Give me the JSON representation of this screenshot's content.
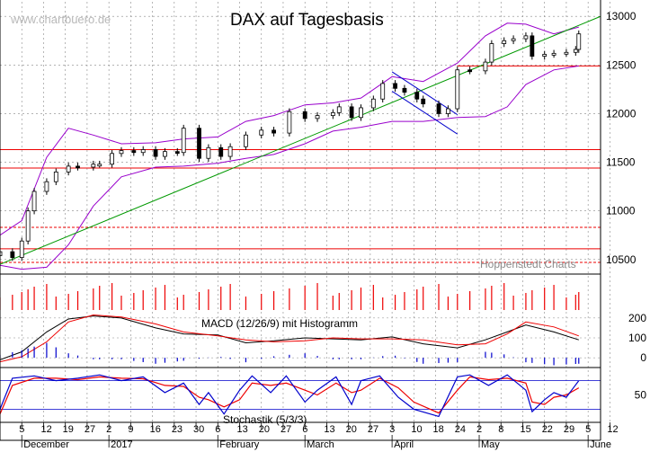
{
  "watermark": "www.chartbuero.de",
  "title": "DAX auf Tagesbasis",
  "source_label": "Hoppenstedt Charts",
  "macd_label": "MACD (12/26/9) mit Histogramm",
  "stoch_label": "Stochastik (5/3/3)",
  "colors": {
    "price": "#000000",
    "bollinger": "#9900cc",
    "trend": "#009900",
    "level": "#ee0000",
    "channel": "#0000cc",
    "macd": "#000000",
    "signal": "#ee0000",
    "histogram": "#0000cc",
    "stoch_k": "#0000cc",
    "stoch_d": "#ee0000"
  },
  "chart_data": {
    "type": "candlestick",
    "title": "DAX auf Tagesbasis",
    "y_ticks": [
      10500,
      11000,
      11500,
      12000,
      12500,
      13000
    ],
    "ylim": [
      10350,
      13150
    ],
    "x_day_ticks": [
      "5",
      "12",
      "19",
      "27",
      "2",
      "9",
      "16",
      "23",
      "30",
      "6",
      "13",
      "20",
      "27",
      "6",
      "13",
      "20",
      "27",
      "3",
      "10",
      "18",
      "24",
      "2",
      "8",
      "15",
      "22",
      "29",
      "5",
      "12"
    ],
    "months": [
      {
        "label": "December",
        "tick": 0
      },
      {
        "label": "2017",
        "tick": 4
      },
      {
        "label": "February",
        "tick": 9
      },
      {
        "label": "March",
        "tick": 13
      },
      {
        "label": "April",
        "tick": 17
      },
      {
        "label": "May",
        "tick": 21
      },
      {
        "label": "June",
        "tick": 26
      }
    ],
    "horizontal_levels": [
      {
        "value": 11630,
        "style": "solid"
      },
      {
        "value": 11440,
        "style": "solid"
      },
      {
        "value": 10830,
        "style": "dashed"
      },
      {
        "value": 10610,
        "style": "solid"
      },
      {
        "value": 10470,
        "style": "dashed"
      },
      {
        "value": 12490,
        "style": "solid"
      }
    ],
    "trend_line": {
      "from": {
        "date": "2016-11-28",
        "value": 10450
      },
      "to": {
        "date": "2017-06-09",
        "value": 13000
      }
    },
    "channel_lines": [
      {
        "from": {
          "date": "2017-04-03",
          "value": 12430
        },
        "to": {
          "date": "2017-04-24",
          "value": 11990
        }
      },
      {
        "from": {
          "date": "2017-04-03",
          "value": 12230
        },
        "to": {
          "date": "2017-04-24",
          "value": 11790
        }
      }
    ],
    "price_close": [
      [
        "2016-11-28",
        10580
      ],
      [
        "2016-12-02",
        10520
      ],
      [
        "2016-12-05",
        10690
      ],
      [
        "2016-12-07",
        11000
      ],
      [
        "2016-12-09",
        11200
      ],
      [
        "2016-12-13",
        11300
      ],
      [
        "2016-12-16",
        11400
      ],
      [
        "2016-12-20",
        11460
      ],
      [
        "2016-12-23",
        11450
      ],
      [
        "2016-12-28",
        11480
      ],
      [
        "2016-12-30",
        11480
      ],
      [
        "2017-01-03",
        11590
      ],
      [
        "2017-01-06",
        11620
      ],
      [
        "2017-01-10",
        11600
      ],
      [
        "2017-01-13",
        11630
      ],
      [
        "2017-01-17",
        11560
      ],
      [
        "2017-01-20",
        11610
      ],
      [
        "2017-01-24",
        11600
      ],
      [
        "2017-01-26",
        11850
      ],
      [
        "2017-01-31",
        11540
      ],
      [
        "2017-02-03",
        11650
      ],
      [
        "2017-02-07",
        11560
      ],
      [
        "2017-02-10",
        11660
      ],
      [
        "2017-02-15",
        11780
      ],
      [
        "2017-02-20",
        11830
      ],
      [
        "2017-02-24",
        11800
      ],
      [
        "2017-03-01",
        12020
      ],
      [
        "2017-03-06",
        11950
      ],
      [
        "2017-03-10",
        11980
      ],
      [
        "2017-03-15",
        12010
      ],
      [
        "2017-03-17",
        12070
      ],
      [
        "2017-03-21",
        11960
      ],
      [
        "2017-03-24",
        12060
      ],
      [
        "2017-03-28",
        12150
      ],
      [
        "2017-03-31",
        12310
      ],
      [
        "2017-04-04",
        12260
      ],
      [
        "2017-04-07",
        12220
      ],
      [
        "2017-04-11",
        12150
      ],
      [
        "2017-04-13",
        12100
      ],
      [
        "2017-04-18",
        12000
      ],
      [
        "2017-04-21",
        12050
      ],
      [
        "2017-04-24",
        12450
      ],
      [
        "2017-04-28",
        12440
      ],
      [
        "2017-05-03",
        12530
      ],
      [
        "2017-05-05",
        12720
      ],
      [
        "2017-05-09",
        12750
      ],
      [
        "2017-05-12",
        12770
      ],
      [
        "2017-05-16",
        12800
      ],
      [
        "2017-05-18",
        12590
      ],
      [
        "2017-05-22",
        12610
      ],
      [
        "2017-05-25",
        12620
      ],
      [
        "2017-05-29",
        12630
      ],
      [
        "2017-06-01",
        12660
      ],
      [
        "2017-06-02",
        12820
      ]
    ],
    "bollinger_upper": [
      [
        "2016-11-28",
        10750
      ],
      [
        "2016-12-05",
        10900
      ],
      [
        "2016-12-13",
        11550
      ],
      [
        "2016-12-20",
        11850
      ],
      [
        "2016-12-28",
        11780
      ],
      [
        "2017-01-06",
        11690
      ],
      [
        "2017-01-17",
        11700
      ],
      [
        "2017-01-26",
        11740
      ],
      [
        "2017-02-06",
        11760
      ],
      [
        "2017-02-15",
        11920
      ],
      [
        "2017-02-24",
        11980
      ],
      [
        "2017-03-06",
        12090
      ],
      [
        "2017-03-15",
        12110
      ],
      [
        "2017-03-24",
        12160
      ],
      [
        "2017-04-03",
        12380
      ],
      [
        "2017-04-13",
        12330
      ],
      [
        "2017-04-24",
        12520
      ],
      [
        "2017-05-03",
        12800
      ],
      [
        "2017-05-10",
        12930
      ],
      [
        "2017-05-16",
        12920
      ],
      [
        "2017-05-25",
        12820
      ],
      [
        "2017-06-02",
        12890
      ]
    ],
    "bollinger_lower": [
      [
        "2016-11-28",
        10440
      ],
      [
        "2016-12-05",
        10400
      ],
      [
        "2016-12-13",
        10420
      ],
      [
        "2016-12-20",
        10650
      ],
      [
        "2016-12-28",
        11050
      ],
      [
        "2017-01-06",
        11350
      ],
      [
        "2017-01-17",
        11450
      ],
      [
        "2017-01-26",
        11460
      ],
      [
        "2017-02-06",
        11490
      ],
      [
        "2017-02-15",
        11540
      ],
      [
        "2017-02-24",
        11580
      ],
      [
        "2017-03-06",
        11690
      ],
      [
        "2017-03-15",
        11820
      ],
      [
        "2017-03-24",
        11860
      ],
      [
        "2017-04-03",
        11920
      ],
      [
        "2017-04-13",
        11920
      ],
      [
        "2017-04-24",
        11960
      ],
      [
        "2017-05-03",
        11970
      ],
      [
        "2017-05-10",
        12070
      ],
      [
        "2017-05-16",
        12300
      ],
      [
        "2017-05-25",
        12450
      ],
      [
        "2017-06-02",
        12490
      ]
    ],
    "macd_ticks": [
      0,
      100,
      200
    ],
    "macd_ylim": [
      -40,
      240
    ],
    "macd_line": [
      [
        "2016-11-28",
        -10
      ],
      [
        "2016-12-05",
        30
      ],
      [
        "2016-12-13",
        130
      ],
      [
        "2016-12-20",
        195
      ],
      [
        "2016-12-28",
        210
      ],
      [
        "2017-01-06",
        200
      ],
      [
        "2017-01-17",
        150
      ],
      [
        "2017-01-26",
        120
      ],
      [
        "2017-02-06",
        115
      ],
      [
        "2017-02-15",
        75
      ],
      [
        "2017-02-24",
        85
      ],
      [
        "2017-03-06",
        100
      ],
      [
        "2017-03-15",
        95
      ],
      [
        "2017-03-24",
        90
      ],
      [
        "2017-04-03",
        105
      ],
      [
        "2017-04-13",
        70
      ],
      [
        "2017-04-24",
        50
      ],
      [
        "2017-05-03",
        90
      ],
      [
        "2017-05-10",
        130
      ],
      [
        "2017-05-16",
        165
      ],
      [
        "2017-05-25",
        130
      ],
      [
        "2017-06-02",
        90
      ]
    ],
    "macd_signal": [
      [
        "2016-11-28",
        -20
      ],
      [
        "2016-12-05",
        5
      ],
      [
        "2016-12-13",
        80
      ],
      [
        "2016-12-20",
        180
      ],
      [
        "2016-12-28",
        215
      ],
      [
        "2017-01-06",
        205
      ],
      [
        "2017-01-17",
        170
      ],
      [
        "2017-01-26",
        130
      ],
      [
        "2017-02-06",
        110
      ],
      [
        "2017-02-15",
        90
      ],
      [
        "2017-02-24",
        80
      ],
      [
        "2017-03-06",
        85
      ],
      [
        "2017-03-15",
        100
      ],
      [
        "2017-03-24",
        95
      ],
      [
        "2017-04-03",
        95
      ],
      [
        "2017-04-13",
        90
      ],
      [
        "2017-04-24",
        65
      ],
      [
        "2017-05-03",
        70
      ],
      [
        "2017-05-10",
        120
      ],
      [
        "2017-05-16",
        180
      ],
      [
        "2017-05-25",
        155
      ],
      [
        "2017-06-02",
        110
      ]
    ],
    "stoch_ticks": [
      50
    ],
    "stoch_ylim": [
      0,
      100
    ],
    "stoch_k": [
      [
        "2016-11-28",
        20
      ],
      [
        "2016-12-02",
        85
      ],
      [
        "2016-12-09",
        90
      ],
      [
        "2016-12-16",
        80
      ],
      [
        "2016-12-23",
        85
      ],
      [
        "2016-12-30",
        92
      ],
      [
        "2017-01-06",
        80
      ],
      [
        "2017-01-13",
        88
      ],
      [
        "2017-01-20",
        55
      ],
      [
        "2017-01-26",
        75
      ],
      [
        "2017-01-31",
        30
      ],
      [
        "2017-02-03",
        55
      ],
      [
        "2017-02-08",
        10
      ],
      [
        "2017-02-13",
        60
      ],
      [
        "2017-02-17",
        90
      ],
      [
        "2017-02-23",
        55
      ],
      [
        "2017-02-28",
        90
      ],
      [
        "2017-03-06",
        35
      ],
      [
        "2017-03-10",
        60
      ],
      [
        "2017-03-16",
        88
      ],
      [
        "2017-03-21",
        30
      ],
      [
        "2017-03-24",
        80
      ],
      [
        "2017-03-30",
        90
      ],
      [
        "2017-04-05",
        45
      ],
      [
        "2017-04-10",
        20
      ],
      [
        "2017-04-18",
        5
      ],
      [
        "2017-04-24",
        88
      ],
      [
        "2017-04-28",
        92
      ],
      [
        "2017-05-04",
        70
      ],
      [
        "2017-05-10",
        92
      ],
      [
        "2017-05-16",
        60
      ],
      [
        "2017-05-18",
        15
      ],
      [
        "2017-05-22",
        40
      ],
      [
        "2017-05-25",
        55
      ],
      [
        "2017-05-29",
        45
      ],
      [
        "2017-06-02",
        80
      ]
    ],
    "stoch_d": [
      [
        "2016-11-28",
        10
      ],
      [
        "2016-12-02",
        70
      ],
      [
        "2016-12-09",
        85
      ],
      [
        "2016-12-16",
        85
      ],
      [
        "2016-12-23",
        82
      ],
      [
        "2016-12-30",
        88
      ],
      [
        "2017-01-06",
        85
      ],
      [
        "2017-01-13",
        84
      ],
      [
        "2017-01-20",
        70
      ],
      [
        "2017-01-26",
        68
      ],
      [
        "2017-01-31",
        45
      ],
      [
        "2017-02-03",
        40
      ],
      [
        "2017-02-08",
        25
      ],
      [
        "2017-02-13",
        40
      ],
      [
        "2017-02-17",
        75
      ],
      [
        "2017-02-23",
        70
      ],
      [
        "2017-02-28",
        75
      ],
      [
        "2017-03-06",
        60
      ],
      [
        "2017-03-10",
        50
      ],
      [
        "2017-03-16",
        75
      ],
      [
        "2017-03-21",
        55
      ],
      [
        "2017-03-24",
        60
      ],
      [
        "2017-03-30",
        85
      ],
      [
        "2017-04-05",
        65
      ],
      [
        "2017-04-10",
        35
      ],
      [
        "2017-04-18",
        12
      ],
      [
        "2017-04-24",
        60
      ],
      [
        "2017-04-28",
        88
      ],
      [
        "2017-05-04",
        82
      ],
      [
        "2017-05-10",
        85
      ],
      [
        "2017-05-16",
        75
      ],
      [
        "2017-05-18",
        35
      ],
      [
        "2017-05-22",
        30
      ],
      [
        "2017-05-25",
        45
      ],
      [
        "2017-05-29",
        50
      ],
      [
        "2017-06-02",
        65
      ]
    ]
  }
}
